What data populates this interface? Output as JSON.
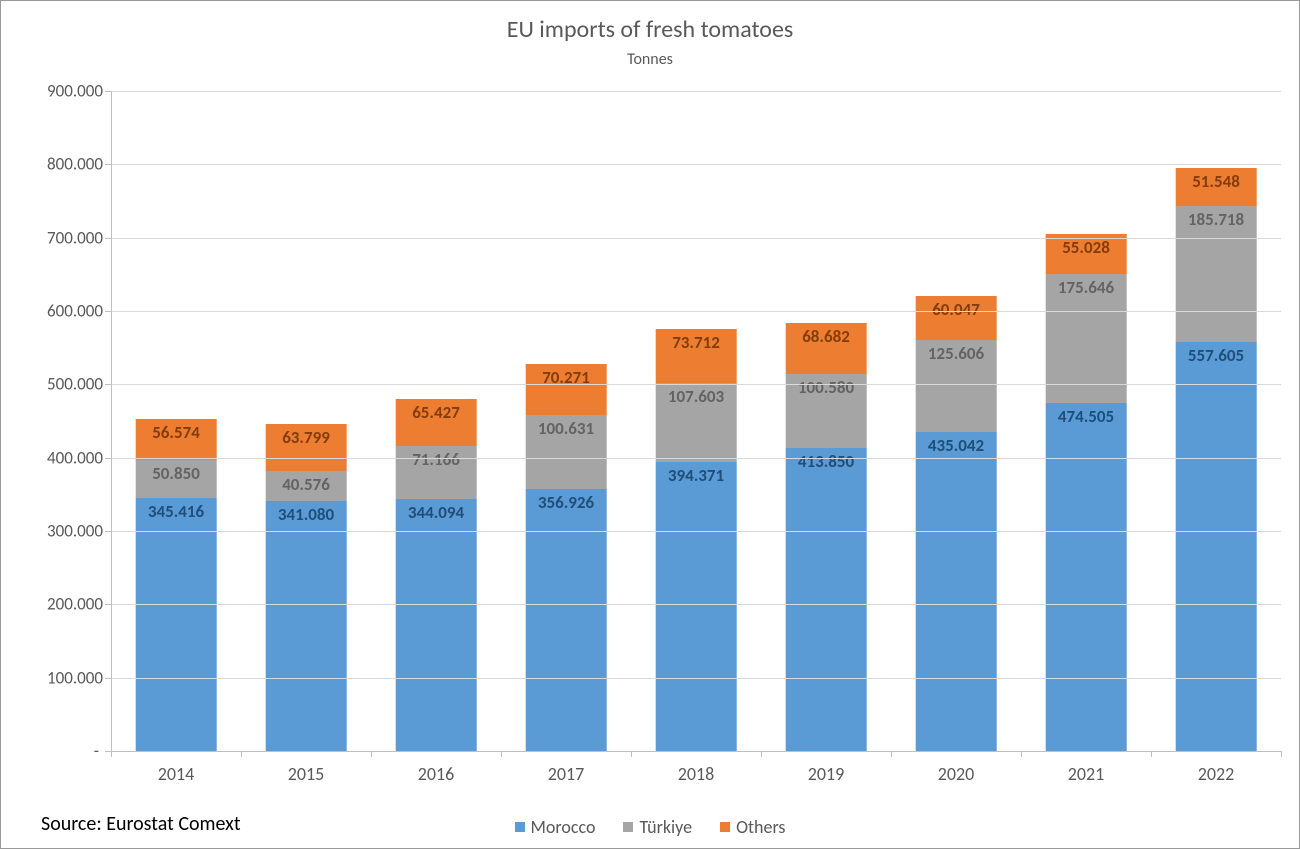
{
  "chart": {
    "type": "stacked-bar",
    "title": "EU imports of fresh tomatoes",
    "subtitle": "Tonnes",
    "title_fontsize": 24,
    "subtitle_fontsize": 16,
    "title_color": "#595959",
    "background_color": "#ffffff",
    "border_color": "#999999",
    "grid_color": "#d9d9d9",
    "axis_color": "#bfbfbf",
    "tick_label_color": "#595959",
    "tick_label_fontsize": 17,
    "x_label_fontsize": 18,
    "bar_width_ratio": 0.62,
    "ylim": [
      0,
      900000
    ],
    "ytick_step": 100000,
    "yticks": [
      {
        "v": 0,
        "label": "-"
      },
      {
        "v": 100000,
        "label": "100.000"
      },
      {
        "v": 200000,
        "label": "200.000"
      },
      {
        "v": 300000,
        "label": "300.000"
      },
      {
        "v": 400000,
        "label": "400.000"
      },
      {
        "v": 500000,
        "label": "500.000"
      },
      {
        "v": 600000,
        "label": "600.000"
      },
      {
        "v": 700000,
        "label": "700.000"
      },
      {
        "v": 800000,
        "label": "800.000"
      },
      {
        "v": 900000,
        "label": "900.000"
      }
    ],
    "categories": [
      "2014",
      "2015",
      "2016",
      "2017",
      "2018",
      "2019",
      "2020",
      "2021",
      "2022"
    ],
    "series": [
      {
        "name": "Morocco",
        "color": "#5b9bd5",
        "label_color": "#1f4e79",
        "values": [
          345416,
          341080,
          344094,
          356926,
          394371,
          413850,
          435042,
          474505,
          557605
        ],
        "labels": [
          "345.416",
          "341.080",
          "344.094",
          "356.926",
          "394.371",
          "413.850",
          "435.042",
          "474.505",
          "557.605"
        ]
      },
      {
        "name": "Türkiye",
        "color": "#a5a5a5",
        "label_color": "#636363",
        "values": [
          50850,
          40576,
          71166,
          100631,
          107603,
          100580,
          125606,
          175646,
          185718
        ],
        "labels": [
          "50.850",
          "40.576",
          "71.166",
          "100.631",
          "107.603",
          "100.580",
          "125.606",
          "175.646",
          "185.718"
        ]
      },
      {
        "name": "Others",
        "color": "#ed7d31",
        "label_color": "#843c0b",
        "values": [
          56574,
          63799,
          65427,
          70271,
          73712,
          68682,
          60047,
          55028,
          51548
        ],
        "labels": [
          "56.574",
          "63.799",
          "65.427",
          "70.271",
          "73.712",
          "68.682",
          "60.047",
          "55.028",
          "51.548"
        ]
      }
    ],
    "legend": {
      "position": "bottom",
      "items": [
        "Morocco",
        "Türkiye",
        "Others"
      ],
      "fontsize": 18
    },
    "source_label": "Source:  Eurostat Comext",
    "source_fontsize": 20,
    "data_label_fontsize": 17,
    "data_label_fontweight": "bold"
  }
}
